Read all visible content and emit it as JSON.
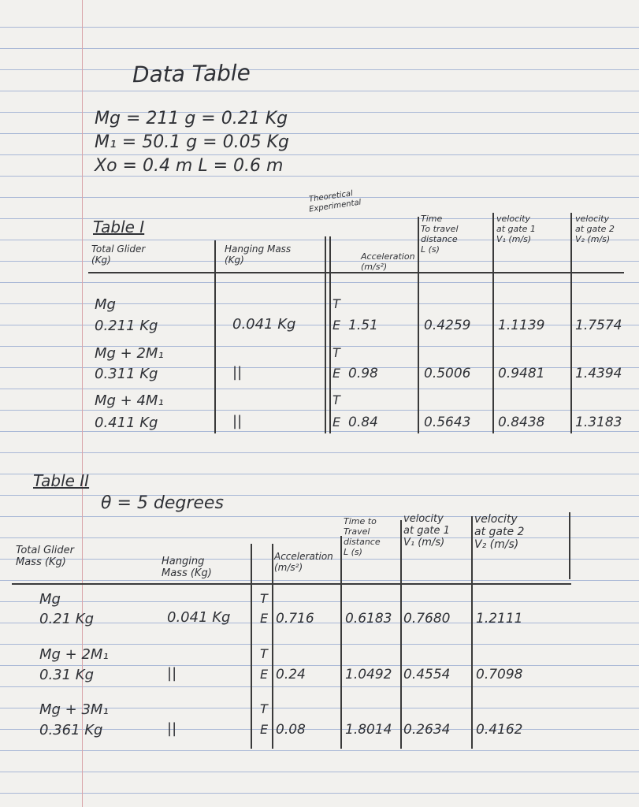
{
  "title": "Data Table",
  "givens": [
    "Mg = 211 g = 0.21 Kg",
    "M₁ = 50.1 g = 0.05 Kg",
    "Xo = 0.4 m   L = 0.6 m"
  ],
  "table1": {
    "label": "Table I",
    "headers": [
      [
        "Total Glider",
        "(Kg)"
      ],
      [
        "Hanging Mass",
        "(Kg)"
      ],
      [
        "Theoretical",
        "Experimental"
      ],
      [
        "Acceleration",
        "(m/s²)"
      ],
      [
        "Time",
        "To travel",
        "distance",
        "L (s)"
      ],
      [
        "velocity",
        "at gate 1",
        "V₁ (m/s)"
      ],
      [
        "velocity",
        "at gate 2",
        "V₂ (m/s)"
      ]
    ],
    "rows": [
      {
        "glider": [
          "Mg",
          "0.211 Kg"
        ],
        "hanging": "0.041 Kg",
        "t": "T",
        "e": "E",
        "acceleration": "1.51",
        "time": "0.4259",
        "v1": "1.1139",
        "v2": "1.7574"
      },
      {
        "glider": [
          "Mg + 2M₁",
          "0.311 Kg"
        ],
        "hanging": "||",
        "t": "T",
        "e": "E",
        "acceleration": "0.98",
        "time": "0.5006",
        "v1": "0.9481",
        "v2": "1.4394"
      },
      {
        "glider": [
          "Mg + 4M₁",
          "0.411 Kg"
        ],
        "hanging": "||",
        "t": "T",
        "e": "E",
        "acceleration": "0.84",
        "time": "0.5643",
        "v1": "0.8438",
        "v2": "1.3183"
      }
    ]
  },
  "table2": {
    "label": "Table II",
    "angle": "θ = 5 degrees",
    "headers": [
      [
        "Total Glider",
        "Mass (Kg)"
      ],
      [
        "Hanging",
        "Mass (Kg)"
      ],
      [
        "Acceleration",
        "(m/s²)"
      ],
      [
        "Time to",
        "Travel",
        "distance",
        "L (s)"
      ],
      [
        "velocity",
        "at gate 1",
        "V₁ (m/s)"
      ],
      [
        "velocity",
        "at gate 2",
        "V₂ (m/s)"
      ]
    ],
    "rows": [
      {
        "glider": [
          "Mg",
          "0.21 Kg"
        ],
        "hanging": "0.041 Kg",
        "t": "T",
        "e": "E",
        "acceleration": "0.716",
        "time": "0.6183",
        "v1": "0.7680",
        "v2": "1.2111"
      },
      {
        "glider": [
          "Mg + 2M₁",
          "0.31 Kg"
        ],
        "hanging": "||",
        "t": "T",
        "e": "E",
        "acceleration": "0.24",
        "time": "1.0492",
        "v1": "0.4554",
        "v2": "0.7098"
      },
      {
        "glider": [
          "Mg + 3M₁",
          "0.361 Kg"
        ],
        "hanging": "||",
        "t": "T",
        "e": "E",
        "acceleration": "0.08",
        "time": "1.8014",
        "v1": "0.2634",
        "v2": "0.4162"
      }
    ]
  }
}
